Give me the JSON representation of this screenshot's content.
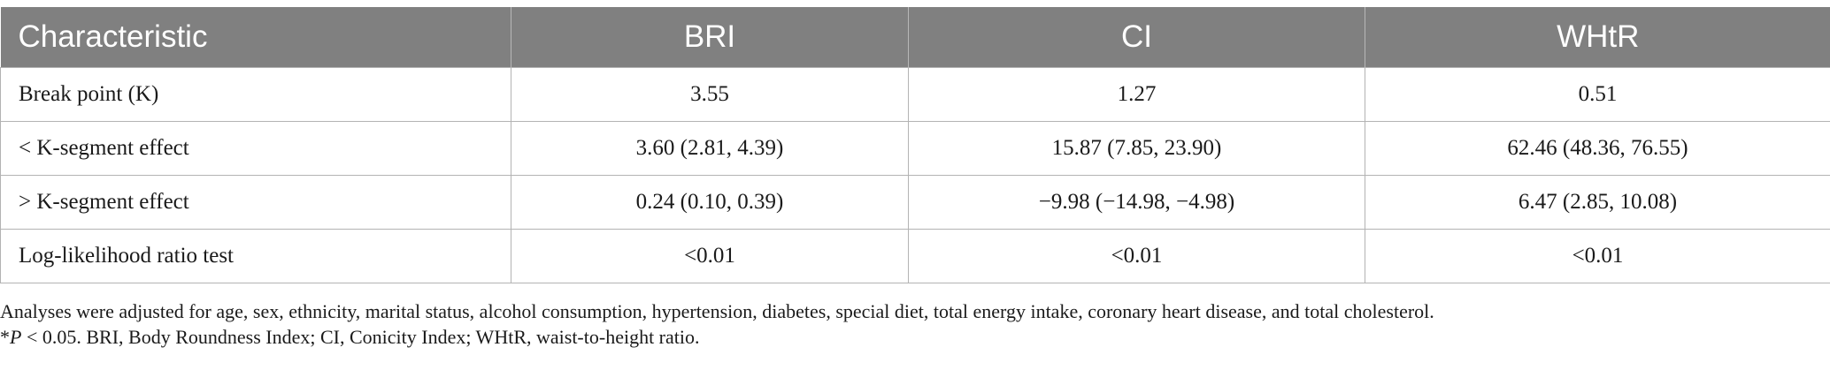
{
  "table": {
    "headers": [
      "Characteristic",
      "BRI",
      "CI",
      "WHtR"
    ],
    "rows": [
      [
        "Break point (K)",
        "3.55",
        "1.27",
        "0.51"
      ],
      [
        "< K-segment effect",
        "3.60 (2.81, 4.39)",
        "15.87 (7.85, 23.90)",
        "62.46 (48.36, 76.55)"
      ],
      [
        "> K-segment effect",
        "0.24 (0.10, 0.39)",
        "−9.98 (−14.98, −4.98)",
        "6.47 (2.85, 10.08)"
      ],
      [
        "Log-likelihood ratio test",
        "<0.01",
        "<0.01",
        "<0.01"
      ]
    ]
  },
  "footnotes": {
    "line1": "Analyses were adjusted for age, sex, ethnicity, marital status, alcohol consumption, hypertension, diabetes, special diet, total energy intake, coronary heart disease, and total cholesterol.",
    "line2_star": "*",
    "line2_p": "P",
    "line2_rest": " < 0.05. BRI, Body Roundness Index; CI, Conicity Index; WHtR, waist-to-height ratio."
  },
  "colors": {
    "header_bg": "#808080",
    "header_text": "#ffffff",
    "grid": "#b3b3b3"
  }
}
